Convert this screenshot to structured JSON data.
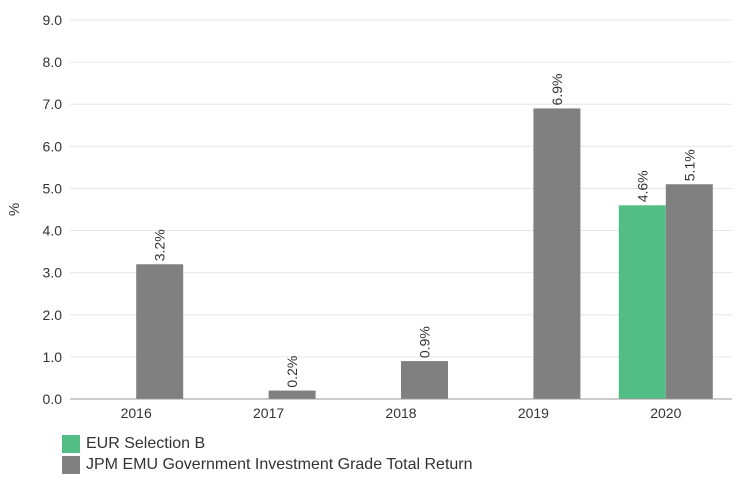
{
  "chart_data": {
    "type": "bar",
    "categories": [
      "2016",
      "2017",
      "2018",
      "2019",
      "2020"
    ],
    "series": [
      {
        "name": "EUR Selection B",
        "color": "#52bd84",
        "values": [
          null,
          null,
          null,
          null,
          4.6
        ],
        "labels": [
          "",
          "",
          "",
          "",
          "4.6%"
        ]
      },
      {
        "name": "JPM EMU Government Investment Grade Total Return",
        "color": "#808080",
        "values": [
          3.2,
          0.2,
          0.9,
          6.9,
          5.1
        ],
        "labels": [
          "3.2%",
          "0.2%",
          "0.9%",
          "6.9%",
          "5.1%"
        ]
      }
    ],
    "ylabel": "%",
    "ylim": [
      0,
      9
    ],
    "yticks": [
      "0.0",
      "1.0",
      "2.0",
      "3.0",
      "4.0",
      "5.0",
      "6.0",
      "7.0",
      "8.0",
      "9.0"
    ],
    "grid": true,
    "legend_position": "bottom-left"
  }
}
